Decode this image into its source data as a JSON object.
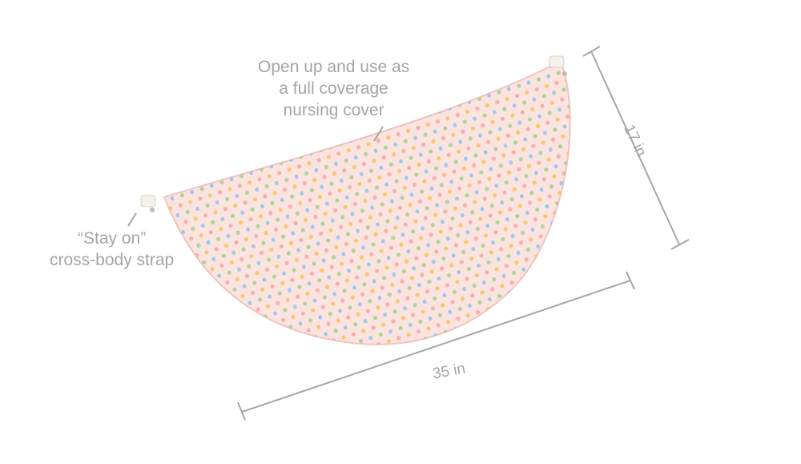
{
  "callouts": {
    "open_up": [
      "Open up and use as",
      "a full coverage",
      "nursing cover"
    ],
    "strap": [
      "“Stay on”",
      "cross-body strap"
    ]
  },
  "dimensions": {
    "height": "17 in",
    "width": "35 in"
  },
  "colors": {
    "fabric": "#fbe3e0",
    "dimension_line": "#a6a6a6",
    "label_text": "#a5a5a5",
    "dots": [
      "#f4a7a0",
      "#f7c35a",
      "#9fd38a",
      "#8ec5ec",
      "#c7a4e0",
      "#f6b26b"
    ]
  }
}
